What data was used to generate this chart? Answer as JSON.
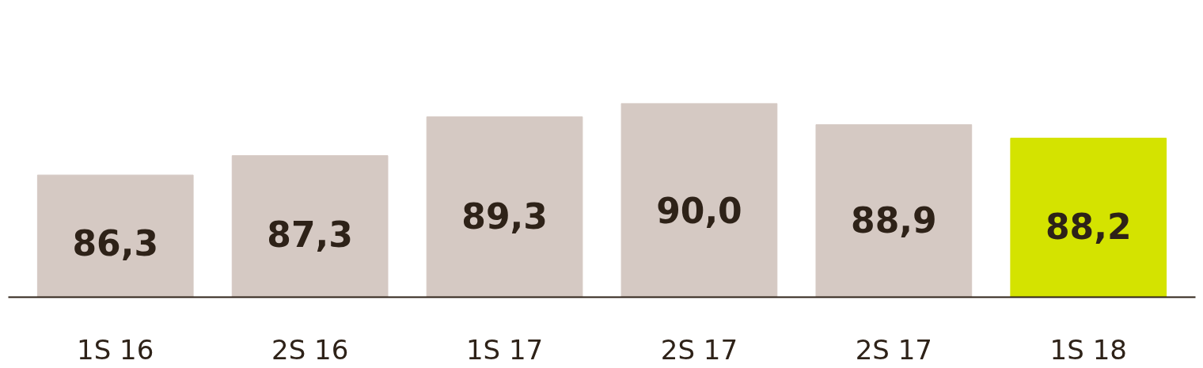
{
  "chart_data": {
    "type": "bar",
    "categories": [
      "1S 16",
      "2S 16",
      "1S 17",
      "2S 17",
      "2S 17",
      "1S 18"
    ],
    "values": [
      86.3,
      87.3,
      89.3,
      90.0,
      88.9,
      88.2
    ],
    "colors": [
      "#d5c9c3",
      "#d5c9c3",
      "#d5c9c3",
      "#d5c9c3",
      "#d5c9c3",
      "#d4e300"
    ],
    "value_labels": [
      "86,3",
      "87,3",
      "89,3",
      "90,0",
      "88,9",
      "88,2"
    ],
    "ylim": [
      80,
      90
    ],
    "tick_labels": "x",
    "grid": false
  }
}
